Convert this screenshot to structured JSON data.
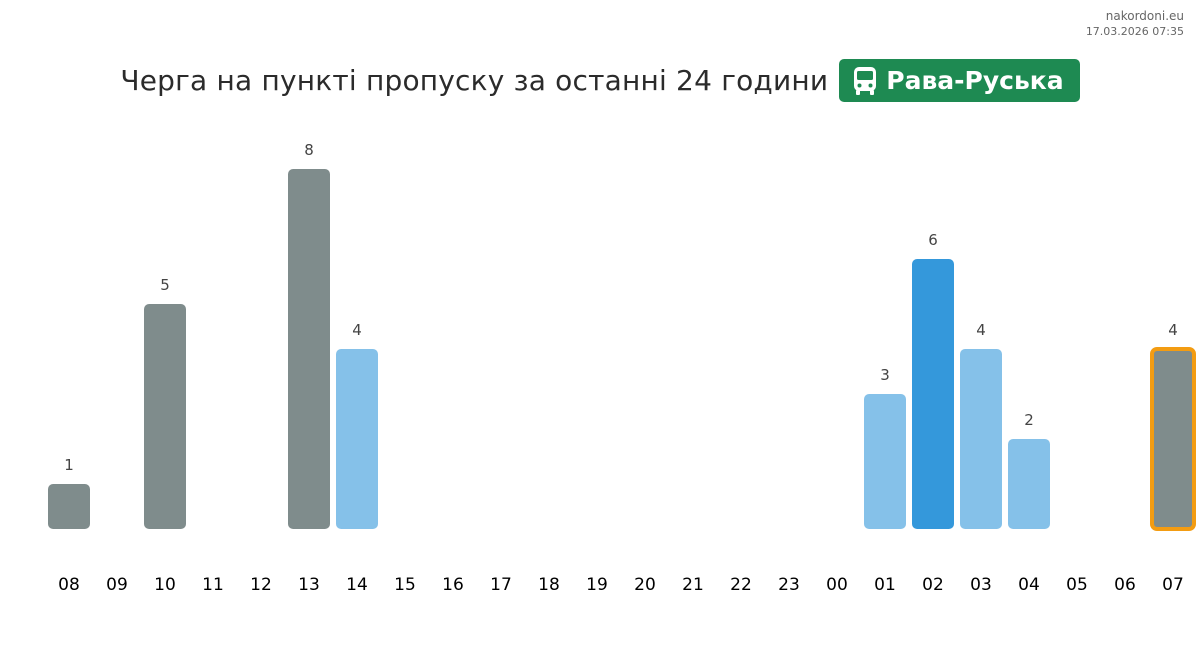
{
  "site": {
    "domain": "nakordoni.eu",
    "timestamp": "17.03.2026 07:35"
  },
  "header": {
    "title": "Черга на пункті пропуску за останні 24 години",
    "crossing_name": "Рава-Руська",
    "crossing_icon": "bus-icon",
    "badge_color": "#1e8a52"
  },
  "chart_data": {
    "type": "bar",
    "categories": [
      "08",
      "09",
      "10",
      "11",
      "12",
      "13",
      "14",
      "15",
      "16",
      "17",
      "18",
      "19",
      "20",
      "21",
      "22",
      "23",
      "00",
      "01",
      "02",
      "03",
      "04",
      "05",
      "06",
      "07"
    ],
    "values": [
      1,
      null,
      5,
      null,
      null,
      8,
      4,
      null,
      null,
      null,
      null,
      null,
      null,
      null,
      null,
      null,
      null,
      3,
      6,
      4,
      2,
      null,
      null,
      4
    ],
    "bar_colors": [
      "#7f8c8c",
      null,
      "#7f8c8c",
      null,
      null,
      "#7f8c8c",
      "#85c1e9",
      null,
      null,
      null,
      null,
      null,
      null,
      null,
      null,
      null,
      null,
      "#85c1e9",
      "#3498db",
      "#85c1e9",
      "#85c1e9",
      null,
      null,
      "#7f8c8c"
    ],
    "highlighted_category": "07",
    "highlight_color": "#f39c12",
    "ylim": [
      0,
      8
    ],
    "grid": false,
    "title": "",
    "xlabel": "",
    "ylabel": ""
  }
}
